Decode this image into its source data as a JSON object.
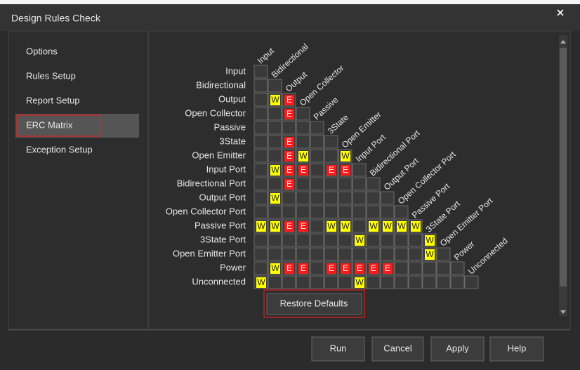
{
  "dialog": {
    "title": "Design Rules Check"
  },
  "sidebar": {
    "items": [
      "Options",
      "Rules Setup",
      "Report Setup",
      "ERC Matrix",
      "Exception Setup"
    ],
    "selected": 3
  },
  "matrix": {
    "labels": [
      "Input",
      "Bidirectional",
      "Output",
      "Open Collector",
      "Passive",
      "3State",
      "Open Emitter",
      "Input Port",
      "Bidirectional Port",
      "Output Port",
      "Open Collector Port",
      "Passive Port",
      "3State Port",
      "Open Emitter Port",
      "Power",
      "Unconnected"
    ],
    "cells": [
      [
        null
      ],
      [
        null,
        null
      ],
      [
        null,
        "W",
        "E"
      ],
      [
        null,
        null,
        "E",
        null
      ],
      [
        null,
        null,
        null,
        null,
        null
      ],
      [
        null,
        null,
        "E",
        null,
        null,
        null
      ],
      [
        null,
        null,
        "E",
        "W",
        null,
        null,
        "W"
      ],
      [
        null,
        "W",
        "E",
        "E",
        null,
        "E",
        "E",
        null
      ],
      [
        null,
        null,
        "E",
        null,
        null,
        null,
        null,
        null,
        null
      ],
      [
        null,
        "W",
        null,
        null,
        null,
        null,
        null,
        null,
        null,
        null
      ],
      [
        null,
        null,
        null,
        null,
        null,
        null,
        null,
        null,
        null,
        null,
        null
      ],
      [
        "W",
        "W",
        "E",
        "E",
        null,
        "W",
        "W",
        null,
        "W",
        "W",
        "W",
        "W"
      ],
      [
        null,
        null,
        null,
        null,
        null,
        null,
        null,
        "W",
        null,
        null,
        null,
        null,
        "W"
      ],
      [
        null,
        null,
        null,
        null,
        null,
        null,
        null,
        null,
        null,
        null,
        null,
        null,
        "W",
        null
      ],
      [
        null,
        "W",
        "E",
        "E",
        null,
        "E",
        "E",
        "E",
        "E",
        "E",
        null,
        null,
        null,
        null,
        null
      ],
      [
        "W",
        null,
        null,
        null,
        null,
        null,
        null,
        "W",
        null,
        null,
        null,
        null,
        null,
        null,
        null,
        null
      ]
    ]
  },
  "restore_button": "Restore Defaults",
  "buttons": [
    "Run",
    "Cancel",
    "Apply",
    "Help"
  ]
}
